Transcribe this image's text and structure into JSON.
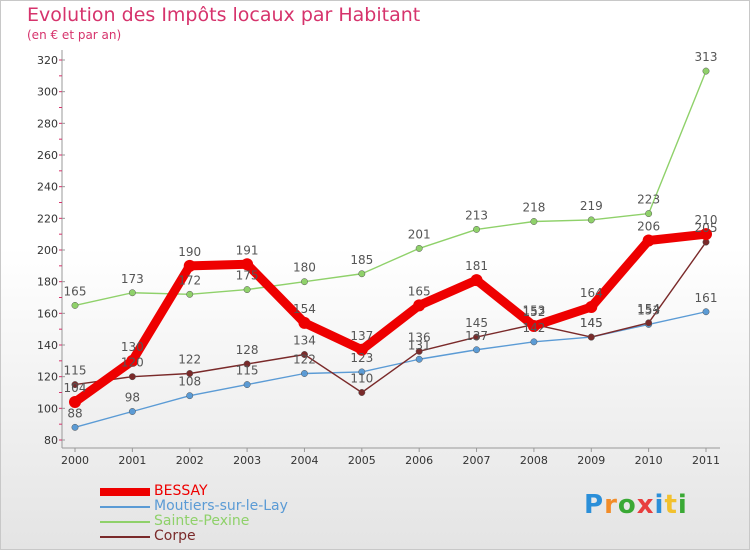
{
  "title": "Evolution des Impôts locaux par Habitant",
  "subtitle": "(en € et par an)",
  "logo": {
    "letters": [
      "P",
      "r",
      "o",
      "x",
      "i",
      "t",
      "i"
    ],
    "colors": [
      "#2b8fd9",
      "#f28c28",
      "#3aa935",
      "#e83e3e",
      "#2b8fd9",
      "#f2c12e",
      "#3aa935"
    ]
  },
  "chart_data": {
    "type": "line",
    "x": [
      "2000",
      "2001",
      "2002",
      "2003",
      "2004",
      "2005",
      "2006",
      "2007",
      "2008",
      "2009",
      "2010",
      "2011"
    ],
    "ylim": [
      80,
      320
    ],
    "yticks": [
      "80",
      "100",
      "120",
      "140",
      "160",
      "180",
      "200",
      "220",
      "240",
      "260",
      "280",
      "300",
      "320"
    ],
    "series": [
      {
        "name": "Sainte-Pexine",
        "color": "#8fd16a",
        "values": [
          165,
          173,
          172,
          175,
          180,
          185,
          201,
          213,
          218,
          219,
          223,
          313
        ],
        "labels": [
          "165",
          "173",
          "172",
          "175",
          "180",
          "185",
          "201",
          "213",
          "218",
          "219",
          "223",
          "313"
        ]
      },
      {
        "name": "Moutiers-sur-le-Lay",
        "color": "#5b9bd5",
        "values": [
          88,
          98,
          108,
          115,
          122,
          123,
          131,
          137,
          142,
          145,
          153,
          161
        ],
        "labels": [
          "88",
          "98",
          "108",
          "115",
          "122",
          "123",
          "131",
          "137",
          "142",
          "145",
          "153",
          "161"
        ]
      },
      {
        "name": "Corpe",
        "color": "#7a2a2a",
        "values": [
          115,
          120,
          122,
          128,
          134,
          110,
          136,
          145,
          153,
          145,
          154,
          205
        ],
        "labels": [
          "115",
          "120",
          "122",
          "128",
          "134",
          "110",
          "136",
          "145",
          "153",
          "145",
          "154",
          "205"
        ]
      },
      {
        "name": "BESSAY",
        "color": "#ee0000",
        "values": [
          104,
          130,
          190,
          191,
          154,
          137,
          165,
          181,
          152,
          164,
          206,
          210
        ],
        "labels": [
          "104",
          "130",
          "190",
          "191",
          "154",
          "137",
          "165",
          "181",
          "152",
          "164",
          "206",
          "210"
        ]
      }
    ],
    "legend": [
      "BESSAY",
      "Moutiers-sur-le-Lay",
      "Sainte-Pexine",
      "Corpe"
    ],
    "legend_colors": [
      "#ee0000",
      "#5b9bd5",
      "#8fd16a",
      "#7a2a2a"
    ],
    "legend_placement": "bottom-left",
    "grid": false
  }
}
